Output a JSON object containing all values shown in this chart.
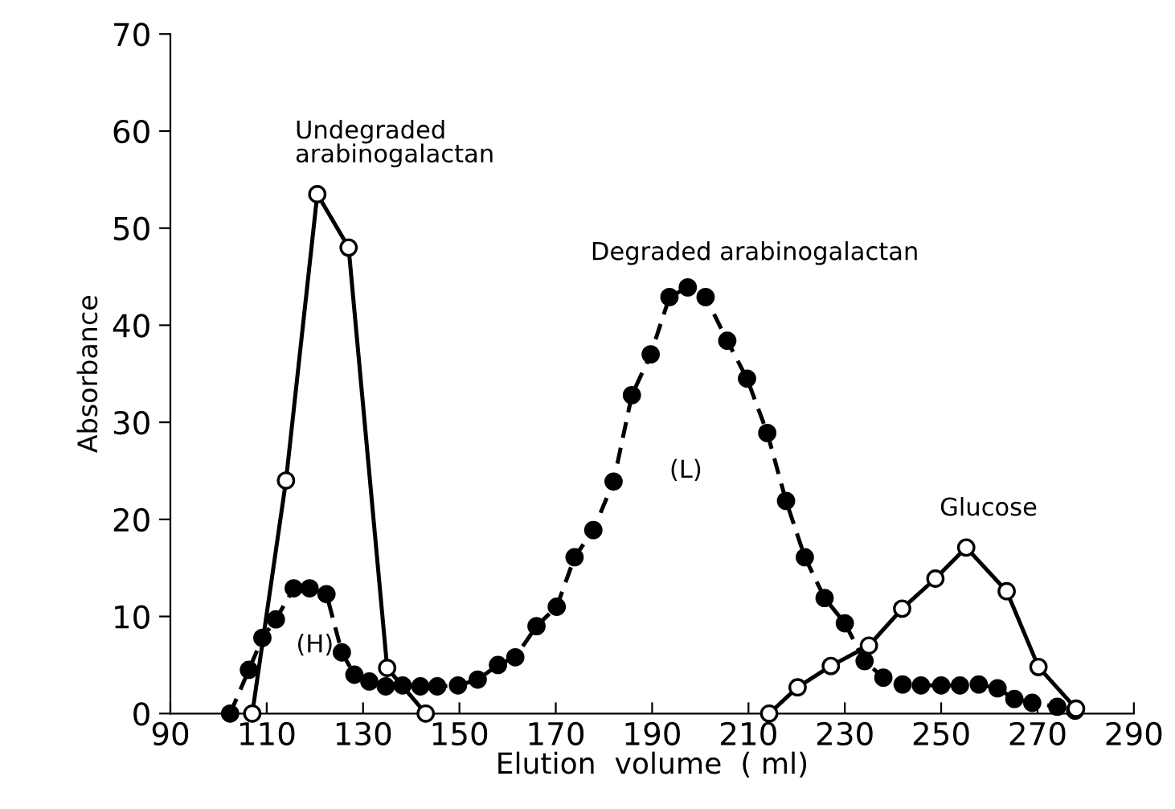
{
  "chart_data": {
    "type": "line",
    "xlabel": "Elution  volume  ( ml)",
    "ylabel": "Absorbance",
    "xlim": [
      90,
      290
    ],
    "xticks": [
      90,
      110,
      130,
      150,
      170,
      190,
      210,
      230,
      250,
      270,
      290
    ],
    "ylim": [
      0,
      70
    ],
    "yticks": [
      0,
      10,
      20,
      30,
      40,
      50,
      60,
      70
    ],
    "grid": false,
    "legend": false,
    "marker": "circle",
    "series": [
      {
        "name": "Undegraded\narabinogalactan",
        "color": "#000000",
        "line_style": "solid",
        "x": [
          107,
          114,
          120.5,
          127,
          135,
          143
        ],
        "values": [
          0,
          24,
          53.5,
          48,
          4.7,
          0
        ]
      },
      {
        "name": "Degraded arabinogalactan",
        "color": "#000000",
        "line_style": "dashed",
        "x": [
          102.4,
          106.3,
          109.1,
          111.9,
          115.6,
          118.9,
          122.4,
          125.6,
          128.2,
          131.3,
          134.7,
          138.2,
          141.9,
          145.4,
          149.7,
          153.8,
          158,
          161.6,
          166,
          170.2,
          173.9,
          177.8,
          182,
          185.8,
          189.7,
          193.6,
          197.4,
          201.1,
          205.6,
          209.7,
          213.9,
          217.8,
          221.7,
          225.8,
          230,
          234.1,
          238,
          242,
          245.8,
          250,
          253.9,
          257.8,
          261.7,
          265.2,
          268.9,
          274.1,
          277.8
        ],
        "values": [
          0,
          4.5,
          7.8,
          9.7,
          12.9,
          12.9,
          12.3,
          6.3,
          4,
          3.3,
          2.8,
          2.9,
          2.8,
          2.8,
          2.9,
          3.5,
          5,
          5.8,
          9,
          11,
          16.1,
          18.9,
          23.9,
          32.8,
          37,
          42.9,
          43.9,
          42.9,
          38.4,
          34.5,
          28.9,
          21.9,
          16.1,
          11.9,
          9.3,
          5.4,
          3.7,
          3,
          2.9,
          2.9,
          2.9,
          3,
          2.6,
          1.5,
          1.1,
          0.7,
          0.3
        ]
      },
      {
        "name": "Glucose",
        "color": "#000000",
        "line_style": "solid",
        "x": [
          214.3,
          220.2,
          227.1,
          235,
          241.9,
          248.8,
          255.2,
          263.6,
          270.2,
          278
        ],
        "values": [
          0,
          2.7,
          4.9,
          7,
          10.8,
          13.9,
          17.1,
          12.6,
          4.8,
          0.5
        ]
      }
    ],
    "annotations": [
      "(H)",
      "(L)"
    ]
  }
}
